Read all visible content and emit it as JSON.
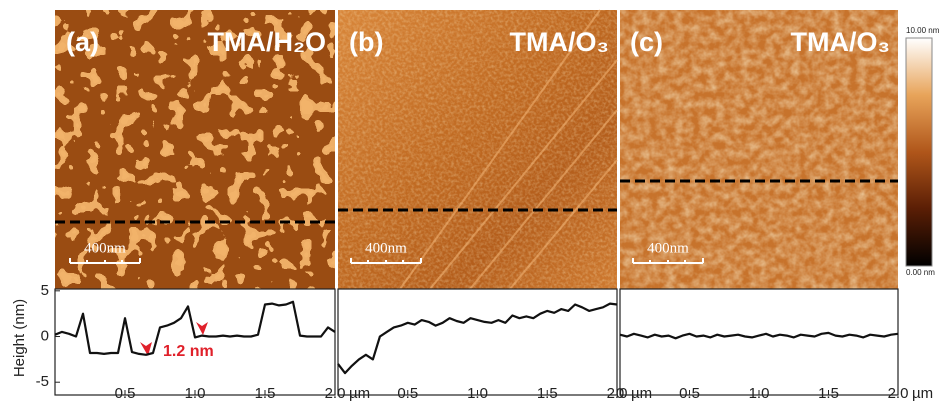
{
  "panels": [
    {
      "label": "(a)",
      "title": "TMA/H₂O",
      "scale_bar": "400nm"
    },
    {
      "label": "(b)",
      "title": "TMA/O₃",
      "scale_bar": "400nm"
    },
    {
      "label": "(c)",
      "title": "TMA/O₃",
      "scale_bar": "400nm"
    }
  ],
  "colorbar": {
    "max_label": "10.00 nm",
    "min_label": "0.00 nm"
  },
  "chart_data": [
    {
      "type": "line",
      "y_label": "Height (nm)",
      "x_label": "µm",
      "color": "#111111",
      "xlim": [
        0,
        2
      ],
      "ylim": [
        -6.4,
        5.2
      ],
      "yticks": [
        -5,
        0,
        5
      ],
      "xticks": [
        0.5,
        {
          "value": 1,
          "label": "1.0"
        },
        1.5,
        {
          "value": 2,
          "label": "2.0"
        }
      ],
      "annotation": "1.2 nm",
      "x": [
        0,
        0.05,
        0.1,
        0.15,
        0.2,
        0.25,
        0.3,
        0.35,
        0.4,
        0.45,
        0.5,
        0.55,
        0.6,
        0.65,
        0.7,
        0.75,
        0.8,
        0.85,
        0.9,
        0.95,
        1,
        1.05,
        1.1,
        1.15,
        1.2,
        1.25,
        1.3,
        1.35,
        1.4,
        1.45,
        1.5,
        1.55,
        1.6,
        1.65,
        1.7,
        1.75,
        1.8,
        1.85,
        1.9,
        1.95,
        2
      ],
      "values": [
        0.2,
        0.5,
        0.3,
        0,
        2.5,
        -1.8,
        -1.8,
        -1.9,
        -1.8,
        -1.8,
        2,
        -1.7,
        -1.9,
        -2,
        -1.8,
        1,
        1.2,
        1.5,
        2,
        3.3,
        -0.1,
        0.1,
        0,
        0,
        0.1,
        0,
        0.1,
        0,
        0,
        0.2,
        3.5,
        3.6,
        3.4,
        3.5,
        3.8,
        0.1,
        0,
        0,
        0,
        1,
        0.5
      ]
    },
    {
      "type": "line",
      "x_label": "µm",
      "color": "#111111",
      "xlim": [
        0,
        2
      ],
      "ylim": [
        -6.4,
        5.2
      ],
      "xticks": [
        0.5,
        {
          "value": 1,
          "label": "1.0"
        },
        1.5,
        {
          "value": 2,
          "label": "2.0"
        }
      ],
      "x": [
        0,
        0.05,
        0.1,
        0.15,
        0.2,
        0.25,
        0.3,
        0.35,
        0.4,
        0.45,
        0.5,
        0.55,
        0.6,
        0.65,
        0.7,
        0.75,
        0.8,
        0.85,
        0.9,
        0.95,
        1,
        1.05,
        1.1,
        1.15,
        1.2,
        1.25,
        1.3,
        1.35,
        1.4,
        1.45,
        1.5,
        1.55,
        1.6,
        1.65,
        1.7,
        1.75,
        1.8,
        1.85,
        1.9,
        1.95,
        2
      ],
      "values": [
        -3,
        -4,
        -3.2,
        -2.5,
        -2,
        -2.5,
        0,
        0.5,
        1,
        1.2,
        1.5,
        1.3,
        1.8,
        1.6,
        1.2,
        1.5,
        2,
        1.7,
        1.5,
        2,
        1.8,
        1.6,
        1.5,
        1.8,
        1.5,
        2.3,
        2,
        2.2,
        2,
        2.5,
        2.8,
        2.6,
        3,
        2.8,
        3.5,
        3.2,
        2.8,
        3,
        3.2,
        3.6,
        3.5
      ]
    },
    {
      "type": "line",
      "x_label": "µm",
      "color": "#111111",
      "xlim": [
        0,
        2
      ],
      "ylim": [
        -6.4,
        5.2
      ],
      "xticks": [
        0,
        0.5,
        {
          "value": 1,
          "label": "1.0"
        },
        1.5,
        {
          "value": 2,
          "label": "2.0"
        }
      ],
      "x": [
        0,
        0.05,
        0.1,
        0.15,
        0.2,
        0.25,
        0.3,
        0.35,
        0.4,
        0.45,
        0.5,
        0.55,
        0.6,
        0.65,
        0.7,
        0.75,
        0.8,
        0.85,
        0.9,
        0.95,
        1,
        1.05,
        1.1,
        1.15,
        1.2,
        1.25,
        1.3,
        1.35,
        1.4,
        1.45,
        1.5,
        1.55,
        1.6,
        1.65,
        1.7,
        1.75,
        1.8,
        1.85,
        1.9,
        1.95,
        2
      ],
      "values": [
        0.2,
        0,
        0.3,
        0.1,
        -0.1,
        0.2,
        0,
        0.1,
        -0.2,
        0.1,
        0.3,
        0,
        0.1,
        -0.1,
        0.2,
        0,
        0.1,
        0.2,
        0,
        -0.1,
        0.1,
        0.3,
        0,
        0.2,
        0.1,
        -0.1,
        0.2,
        0.1,
        0,
        0.3,
        0.4,
        0.1,
        0,
        0.2,
        0.1,
        -0.1,
        0.2,
        0.1,
        0,
        0.2,
        0.3
      ]
    }
  ]
}
